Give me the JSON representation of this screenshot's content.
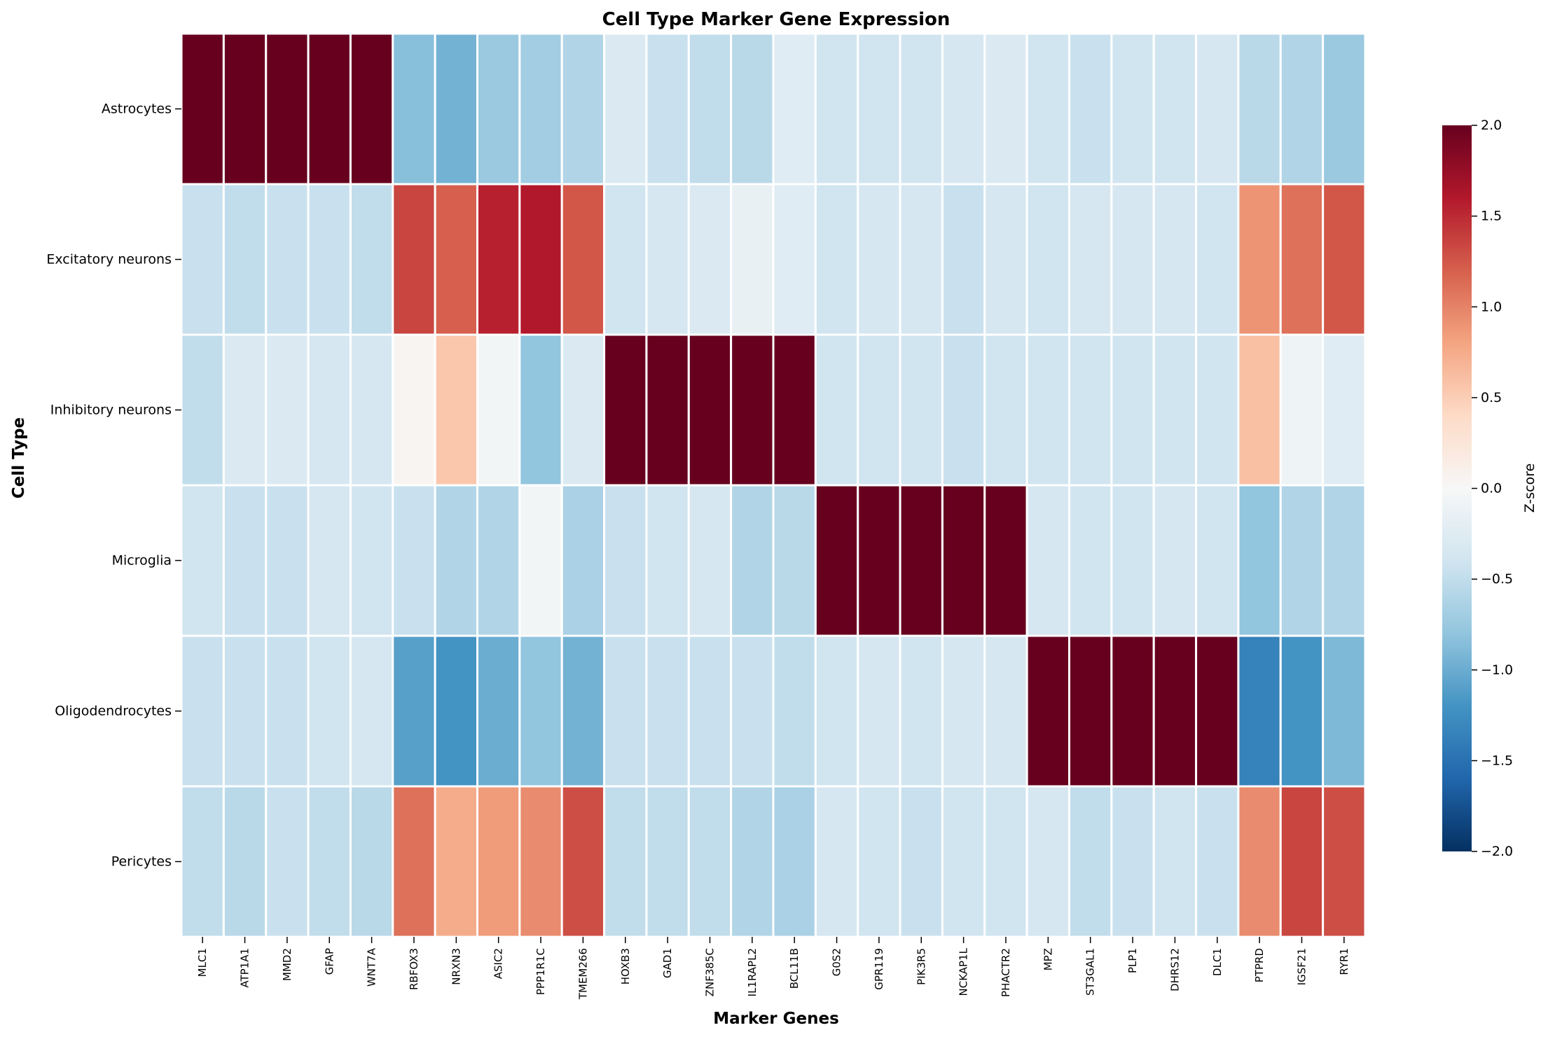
{
  "chart_data": {
    "type": "heatmap",
    "title": "Cell Type Marker Gene Expression",
    "xlabel": "Marker Genes",
    "ylabel": "Cell Type",
    "rows": [
      "Astrocytes",
      "Excitatory neurons",
      "Inhibitory neurons",
      "Microglia",
      "Oligodendrocytes",
      "Pericytes"
    ],
    "columns": [
      "MLC1",
      "ATP1A1",
      "MMD2",
      "GFAP",
      "WNT7A",
      "RBFOX3",
      "NRXN3",
      "ASIC2",
      "PPP1R1C",
      "TMEM266",
      "HOXB3",
      "GAD1",
      "ZNF385C",
      "IL1RAPL2",
      "BCL11B",
      "G0S2",
      "GPR119",
      "PIK3R5",
      "NCKAP1L",
      "PHACTR2",
      "MPZ",
      "ST3GAL1",
      "PLP1",
      "DHRS12",
      "DLC1",
      "PTPRD",
      "IGSF21",
      "RYR1"
    ],
    "values": [
      [
        2.0,
        2.0,
        2.0,
        2.0,
        2.0,
        -0.85,
        -0.95,
        -0.75,
        -0.7,
        -0.6,
        -0.3,
        -0.45,
        -0.5,
        -0.55,
        -0.25,
        -0.4,
        -0.4,
        -0.4,
        -0.35,
        -0.3,
        -0.4,
        -0.45,
        -0.4,
        -0.4,
        -0.35,
        -0.55,
        -0.6,
        -0.75
      ],
      [
        -0.45,
        -0.5,
        -0.45,
        -0.45,
        -0.5,
        1.35,
        1.2,
        1.55,
        1.6,
        1.25,
        -0.4,
        -0.35,
        -0.3,
        -0.15,
        -0.25,
        -0.4,
        -0.35,
        -0.35,
        -0.45,
        -0.35,
        -0.4,
        -0.35,
        -0.35,
        -0.35,
        -0.4,
        0.9,
        1.1,
        1.25
      ],
      [
        -0.5,
        -0.3,
        -0.3,
        -0.35,
        -0.35,
        0.05,
        0.55,
        -0.05,
        -0.8,
        -0.3,
        2.0,
        2.0,
        2.0,
        2.0,
        2.0,
        -0.4,
        -0.4,
        -0.4,
        -0.45,
        -0.4,
        -0.4,
        -0.4,
        -0.4,
        -0.4,
        -0.4,
        0.6,
        -0.1,
        -0.25
      ],
      [
        -0.4,
        -0.45,
        -0.45,
        -0.35,
        -0.4,
        -0.45,
        -0.6,
        -0.6,
        -0.05,
        -0.65,
        -0.45,
        -0.4,
        -0.35,
        -0.6,
        -0.55,
        2.0,
        2.0,
        2.0,
        2.0,
        2.0,
        -0.35,
        -0.4,
        -0.4,
        -0.35,
        -0.4,
        -0.8,
        -0.6,
        -0.6
      ],
      [
        -0.45,
        -0.45,
        -0.45,
        -0.4,
        -0.35,
        -1.1,
        -1.2,
        -1.0,
        -0.8,
        -0.95,
        -0.45,
        -0.45,
        -0.45,
        -0.45,
        -0.5,
        -0.4,
        -0.35,
        -0.4,
        -0.35,
        -0.35,
        2.0,
        2.0,
        2.0,
        2.0,
        2.0,
        -1.35,
        -1.2,
        -0.9
      ],
      [
        -0.5,
        -0.55,
        -0.45,
        -0.5,
        -0.55,
        1.1,
        0.75,
        0.85,
        0.95,
        1.3,
        -0.5,
        -0.5,
        -0.5,
        -0.6,
        -0.65,
        -0.35,
        -0.4,
        -0.45,
        -0.4,
        -0.4,
        -0.35,
        -0.5,
        -0.45,
        -0.4,
        -0.45,
        0.95,
        1.35,
        1.3
      ]
    ],
    "vmin": -2.0,
    "vmax": 2.0,
    "colormap": "RdBu_r",
    "colorbar": {
      "label": "Z-score",
      "ticks": [
        "2.0",
        "1.5",
        "1.0",
        "0.5",
        "0.0",
        "−0.5",
        "−1.0",
        "−1.5",
        "−2.0"
      ],
      "tick_values": [
        2.0,
        1.5,
        1.0,
        0.5,
        0.0,
        -0.5,
        -1.0,
        -1.5,
        -2.0
      ]
    },
    "grid": false,
    "cell_border_color": "#ffffff"
  }
}
